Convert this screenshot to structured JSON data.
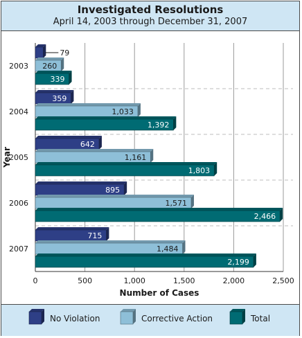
{
  "chart_data": {
    "type": "bar",
    "orientation": "horizontal",
    "title": "Investigated Resolutions",
    "subtitle": "April 14, 2003 through December 31, 2007",
    "xlabel": "Number of Cases",
    "ylabel": "Year",
    "categories": [
      "2003",
      "2004",
      "2005",
      "2006",
      "2007"
    ],
    "series": [
      {
        "name": "No Violation",
        "values": [
          79,
          359,
          642,
          895,
          715
        ],
        "labels": [
          "79",
          "359",
          "642",
          "895",
          "715"
        ],
        "color": "#2e3f86"
      },
      {
        "name": "Corrective Action",
        "values": [
          260,
          1033,
          1161,
          1571,
          1484
        ],
        "labels": [
          "260",
          "1,033",
          "1,161",
          "1,571",
          "1,484"
        ],
        "color": "#8ebfd8"
      },
      {
        "name": "Total",
        "values": [
          339,
          1392,
          1803,
          2466,
          2199
        ],
        "labels": [
          "339",
          "1,392",
          "1,803",
          "2,466",
          "2,199"
        ],
        "color": "#006b73"
      }
    ],
    "xlim": [
      0,
      2500
    ],
    "xticks": [
      0,
      500,
      1000,
      1500,
      2000,
      2500
    ],
    "xtick_labels": [
      "0",
      "500",
      "1,000",
      "1,500",
      "2,000",
      "2,500"
    ],
    "grid": true,
    "legend_position": "bottom"
  }
}
